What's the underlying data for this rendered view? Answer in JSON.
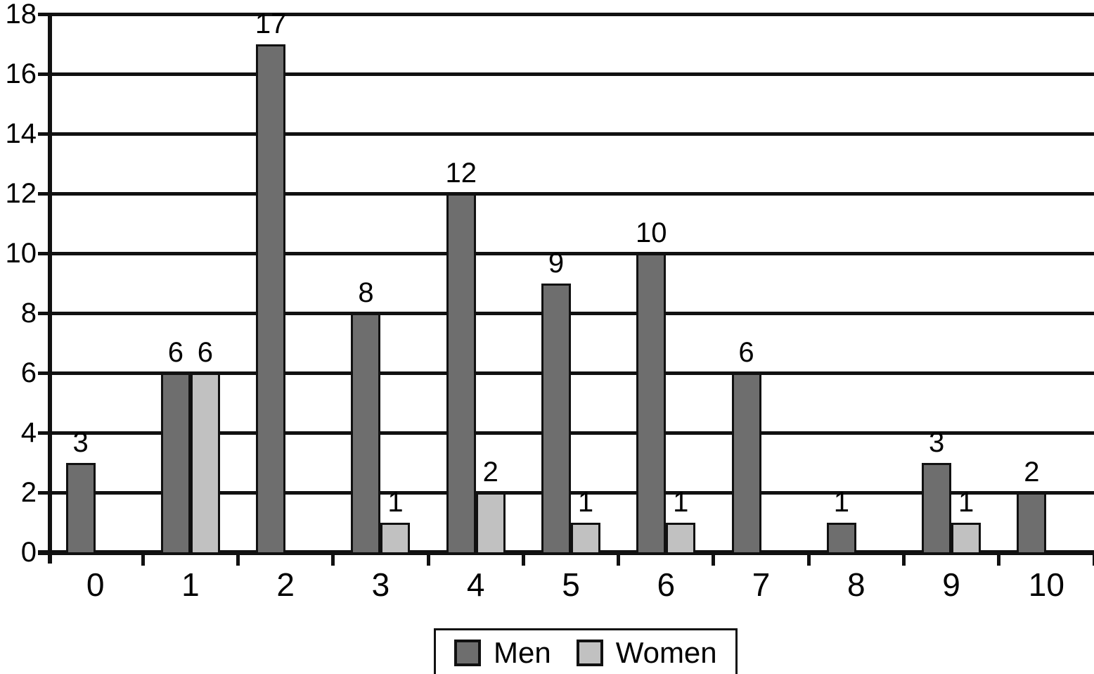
{
  "chart_data": {
    "type": "bar",
    "title": "",
    "xlabel": "",
    "ylabel": "",
    "categories": [
      "0",
      "1",
      "2",
      "3",
      "4",
      "5",
      "6",
      "7",
      "8",
      "9",
      "10"
    ],
    "series": [
      {
        "name": "Men",
        "color": "#6e6e6e",
        "values": [
          3,
          6,
          17,
          8,
          12,
          9,
          10,
          6,
          1,
          3,
          2
        ]
      },
      {
        "name": "Women",
        "color": "#c1c1c1",
        "values": [
          0,
          6,
          0,
          1,
          2,
          1,
          1,
          0,
          0,
          1,
          0
        ]
      }
    ],
    "ylim": [
      0,
      18
    ],
    "ytick_step": 2,
    "ytick_labels": [
      "0",
      "2",
      "4",
      "6",
      "8",
      "10",
      "12",
      "14",
      "16",
      "18"
    ],
    "grid": true,
    "bar_value_labels": true,
    "legend_position": "bottom"
  },
  "colors": {
    "line": "#111111",
    "background": "#ffffff"
  }
}
